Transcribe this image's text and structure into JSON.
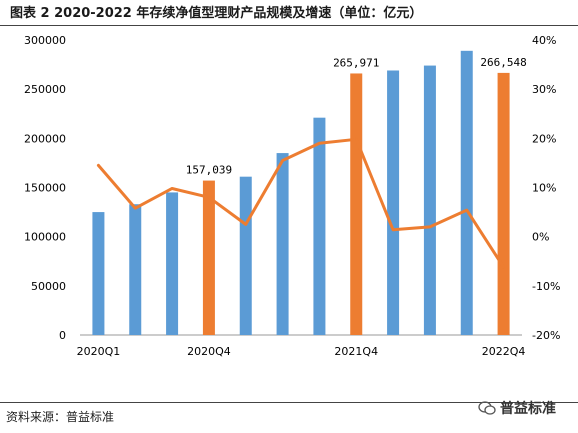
{
  "header": {
    "title": "图表 2 2020-2022 年存续净值型理财产品规模及增速（单位：亿元）"
  },
  "footer": {
    "source": "资料来源：普益标准",
    "watermark_text": "普益标准"
  },
  "chart_data": {
    "type": "bar",
    "title": "图表 2 2020-2022 年存续净值型理财产品规模及增速（单位：亿元）",
    "categories": [
      "2020Q1",
      "",
      "",
      "2020Q4",
      "",
      "",
      "",
      "2021Q4",
      "",
      "",
      "",
      "2022Q4"
    ],
    "series": [
      {
        "type": "bar",
        "axis": "left",
        "values": [
          125000,
          133000,
          145000,
          157039,
          161000,
          185000,
          221000,
          265971,
          269000,
          274000,
          289000,
          266548
        ],
        "colors": [
          "#5b9bd5",
          "#5b9bd5",
          "#5b9bd5",
          "#ed7d31",
          "#5b9bd5",
          "#5b9bd5",
          "#5b9bd5",
          "#ed7d31",
          "#5b9bd5",
          "#5b9bd5",
          "#5b9bd5",
          "#ed7d31"
        ]
      },
      {
        "type": "line",
        "axis": "right",
        "color": "#ed7d31",
        "values": [
          14.5,
          5.8,
          9.8,
          8.0,
          2.5,
          15.5,
          19.0,
          19.8,
          1.4,
          2.0,
          5.4,
          -6.2
        ]
      }
    ],
    "data_labels": [
      {
        "index": 3,
        "text": "157,039"
      },
      {
        "index": 7,
        "text": "265,971"
      },
      {
        "index": 11,
        "text": "266,548"
      }
    ],
    "y_left": {
      "ylim": [
        0,
        300000
      ],
      "ticks": [
        "0",
        "50000",
        "100000",
        "150000",
        "200000",
        "250000",
        "300000"
      ]
    },
    "y_right": {
      "ylim": [
        -20,
        40
      ],
      "ticks": [
        "-20%",
        "-10%",
        "0%",
        "10%",
        "20%",
        "30%",
        "40%"
      ]
    },
    "grid": false,
    "legend": "none"
  }
}
